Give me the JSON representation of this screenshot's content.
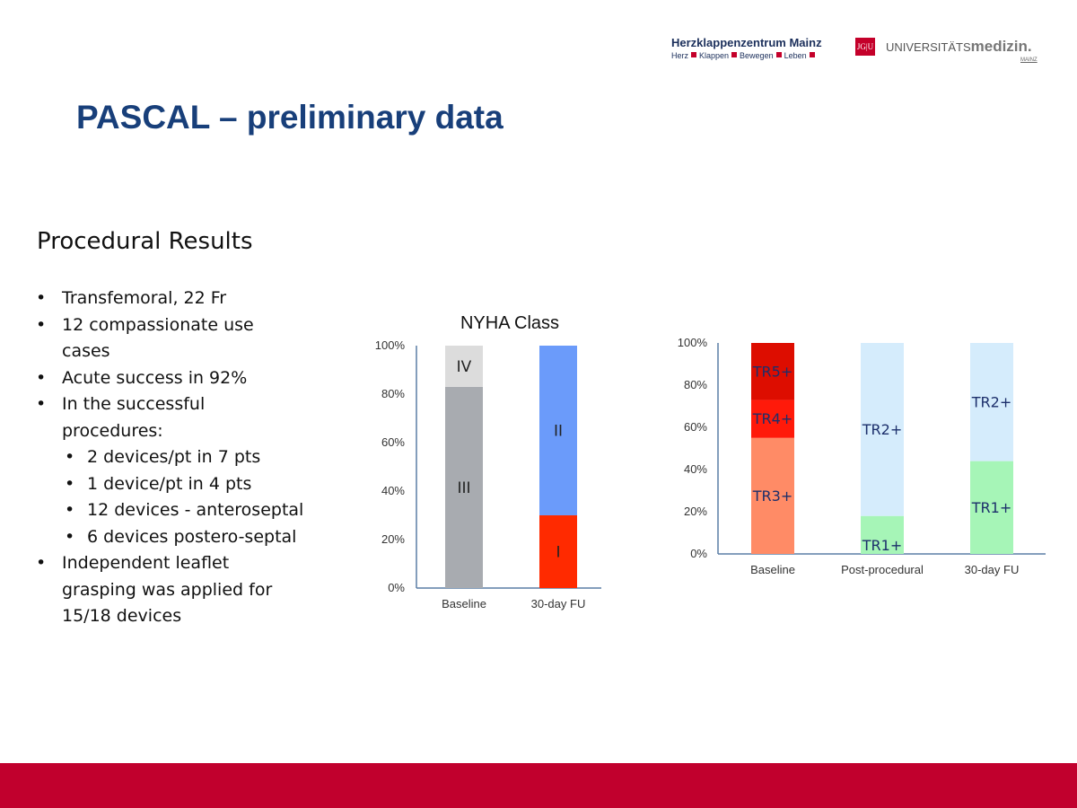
{
  "header": {
    "center_name": "Herzklappenzentrum Mainz",
    "center_tagline": [
      "Herz",
      "Klappen",
      "Bewegen",
      "Leben"
    ],
    "jgu_mark": "JG|U",
    "uni_prefix": "UNIVERSITÄTS",
    "uni_suffix": "medizin.",
    "uni_sub": "MAINZ",
    "brand_color": "#c1002d"
  },
  "slide": {
    "title": "PASCAL – preliminary data",
    "section_title": "Procedural Results"
  },
  "bullets": [
    {
      "text": "Transfemoral, 22 Fr"
    },
    {
      "text": "12 compassionate use cases"
    },
    {
      "text": "Acute success in 92%"
    },
    {
      "text": "In the successful procedures:",
      "children": [
        "2 devices/pt in 7 pts",
        "1 device/pt in 4 pts",
        "12 devices - anteroseptal",
        "6 devices postero-septal"
      ]
    },
    {
      "text": "Independent leaflet grasping was applied for 15/18 devices"
    }
  ],
  "chart_data": [
    {
      "type": "bar",
      "stacked": true,
      "title": "NYHA Class",
      "xlabel": "",
      "ylabel": "",
      "categories": [
        "Baseline",
        "30-day FU"
      ],
      "y_ticks": [
        "0%",
        "20%",
        "40%",
        "60%",
        "80%",
        "100%"
      ],
      "ylim": [
        0,
        100
      ],
      "grid": false,
      "series": [
        {
          "name": "I",
          "values": [
            0,
            30
          ],
          "color": "#ff2a00"
        },
        {
          "name": "II",
          "values": [
            0,
            70
          ],
          "color": "#6b9bfa"
        },
        {
          "name": "III",
          "values": [
            83,
            0
          ],
          "color": "#a8abb0"
        },
        {
          "name": "IV",
          "values": [
            17,
            0
          ],
          "color": "#dcdcdc"
        }
      ]
    },
    {
      "type": "bar",
      "stacked": true,
      "title": "",
      "xlabel": "",
      "ylabel": "",
      "categories": [
        "Baseline",
        "Post-procedural",
        "30-day FU"
      ],
      "y_ticks": [
        "0%",
        "20%",
        "40%",
        "60%",
        "80%",
        "100%"
      ],
      "ylim": [
        0,
        100
      ],
      "grid": false,
      "series": [
        {
          "name": "TR1+",
          "values": [
            0,
            18,
            44
          ],
          "color": "#a6f5b7"
        },
        {
          "name": "TR2+",
          "values": [
            0,
            82,
            56
          ],
          "color": "#d5ecfc"
        },
        {
          "name": "TR3+",
          "values": [
            55,
            0,
            0
          ],
          "color": "#ff8b66"
        },
        {
          "name": "TR4+",
          "values": [
            18,
            0,
            0
          ],
          "color": "#ff1a0a"
        },
        {
          "name": "TR5+",
          "values": [
            27,
            0,
            0
          ],
          "color": "#dd0d00"
        }
      ]
    }
  ]
}
